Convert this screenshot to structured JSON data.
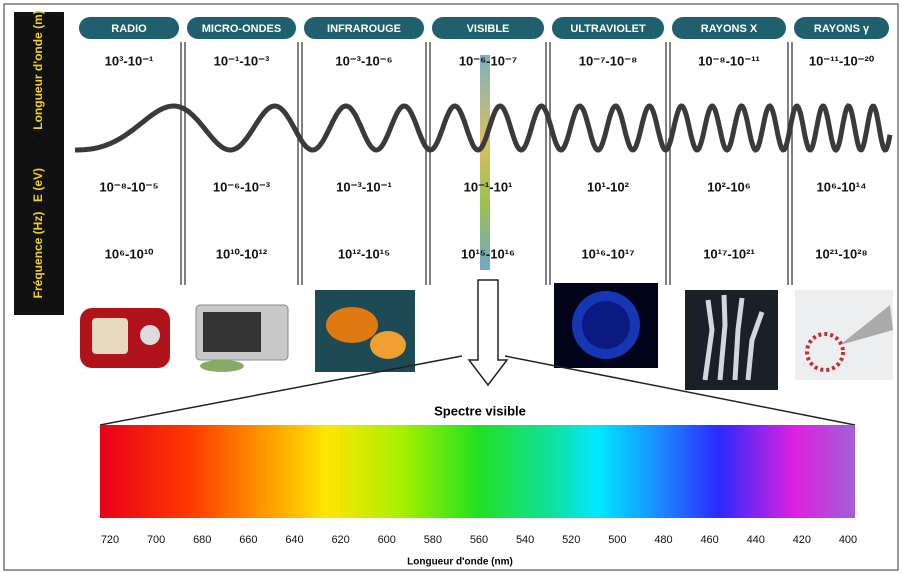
{
  "row_labels": [
    "Longueur d'onde (m)",
    "E (eV)",
    "Fréquence (Hz)"
  ],
  "columns": [
    {
      "name": "RADIO",
      "wavelength": "10³-10⁻¹",
      "energy": "10⁻⁸-10⁻⁵",
      "frequency": "10⁶-10¹⁰"
    },
    {
      "name": "MICRO-ONDES",
      "wavelength": "10⁻¹-10⁻³",
      "energy": "10⁻⁶-10⁻³",
      "frequency": "10¹⁰-10¹²"
    },
    {
      "name": "INFRAROUGE",
      "wavelength": "10⁻³-10⁻⁶",
      "energy": "10⁻³-10⁻¹",
      "frequency": "10¹²-10¹⁵"
    },
    {
      "name": "VISIBLE",
      "wavelength": "10⁻⁶-10⁻⁷",
      "energy": "10⁻¹-10¹",
      "frequency": "10¹⁵-10¹⁶"
    },
    {
      "name": "ULTRAVIOLET",
      "wavelength": "10⁻⁷-10⁻⁸",
      "energy": "10¹-10²",
      "frequency": "10¹⁶-10¹⁷"
    },
    {
      "name": "RAYONS X",
      "wavelength": "10⁻⁸-10⁻¹¹",
      "energy": "10²-10⁶",
      "frequency": "10¹⁷-10²¹"
    },
    {
      "name": "RAYONS γ",
      "wavelength": "10⁻¹¹-10⁻²⁰",
      "energy": "10⁶-10¹⁴",
      "frequency": "10²¹-10²⁸"
    }
  ],
  "spectrum": {
    "title": "Spectre visible",
    "ticks": [
      720,
      700,
      680,
      660,
      640,
      620,
      600,
      580,
      560,
      540,
      520,
      500,
      480,
      460,
      440,
      420,
      400
    ],
    "axis_label": "Longueur d'onde (nm)"
  }
}
